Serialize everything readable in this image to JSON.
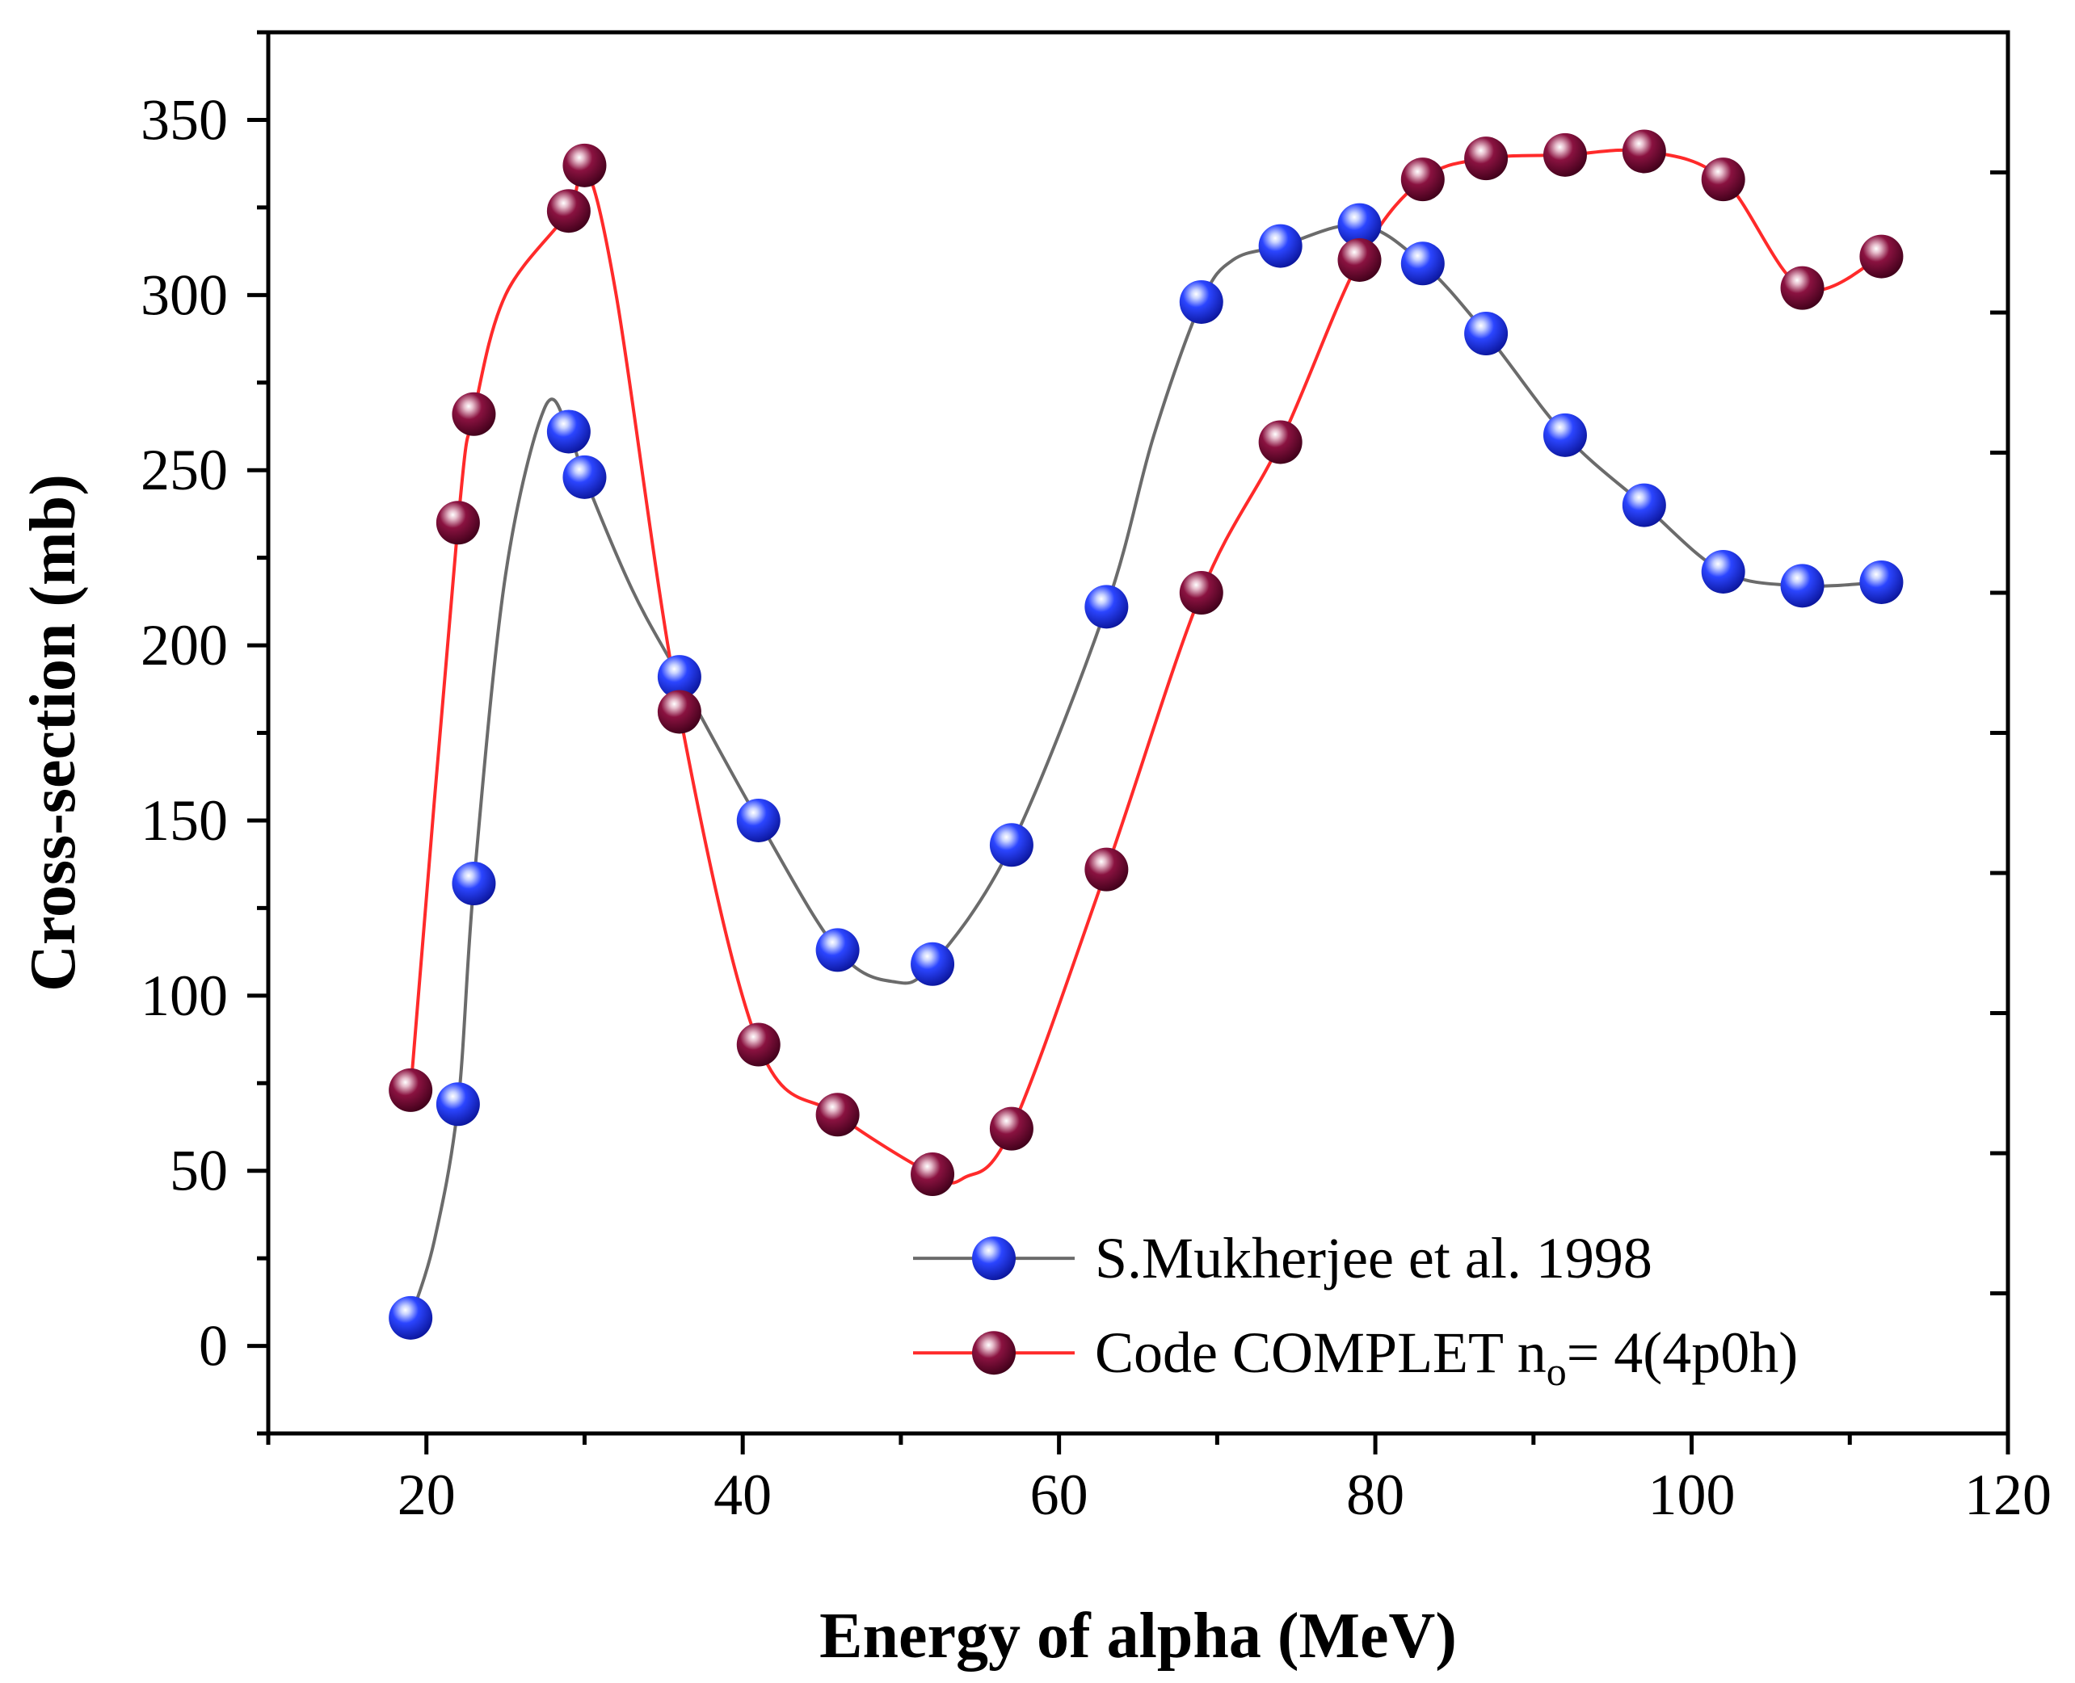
{
  "chart_data": {
    "type": "scatter",
    "title": "",
    "xlabel": "Energy of alpha (MeV)",
    "ylabel": "Cross-section (mb)",
    "xlim": [
      10,
      120
    ],
    "ylim": [
      -25,
      375
    ],
    "xticks": [
      20,
      40,
      60,
      80,
      100,
      120
    ],
    "xtick_labels": [
      "20",
      "40",
      "60",
      "80",
      "100",
      "120"
    ],
    "yticks": [
      0,
      50,
      100,
      150,
      200,
      250,
      300,
      350
    ],
    "ytick_labels": [
      "0",
      "50",
      "100",
      "150",
      "200",
      "250",
      "300",
      "350"
    ],
    "grid": false,
    "legend_position": "bottom-right",
    "series": [
      {
        "name": "S.Mukherjee et al. 1998",
        "line_color": "#6b6b6b",
        "marker_color": "#1f3cff",
        "x": [
          19,
          22,
          23,
          29,
          30,
          36,
          41,
          46,
          52,
          57,
          63,
          69,
          74,
          79,
          83,
          87,
          92,
          97,
          102,
          107,
          112
        ],
        "y": [
          8,
          69,
          132,
          261,
          248,
          191,
          150,
          113,
          109,
          143,
          211,
          298,
          314,
          320,
          309,
          289,
          260,
          240,
          221,
          217,
          218
        ],
        "curve_x": [
          19,
          20.5,
          22,
          23,
          25,
          27.5,
          29,
          30,
          33,
          36,
          41,
          46,
          49.5,
          52,
          57,
          63,
          66,
          69,
          71,
          74,
          79,
          83,
          87,
          92,
          97,
          102,
          107,
          112
        ],
        "curve_y": [
          8,
          30,
          69,
          132,
          220,
          268,
          261,
          248,
          216,
          191,
          150,
          113,
          104,
          109,
          143,
          211,
          260,
          298,
          310,
          314,
          320,
          309,
          289,
          260,
          240,
          221,
          217,
          218
        ]
      },
      {
        "name": "Code COMPLET n",
        "legend_subscript": "o",
        "legend_suffix": "= 4(4p0h)",
        "line_color": "#ff2a2a",
        "marker_color": "#7d0f38",
        "x": [
          19,
          22,
          23,
          29,
          30,
          36,
          41,
          46,
          52,
          57,
          63,
          69,
          74,
          79,
          83,
          87,
          92,
          97,
          102,
          107,
          112
        ],
        "y": [
          73,
          235,
          266,
          324,
          337,
          181,
          86,
          66,
          49,
          62,
          136,
          215,
          258,
          310,
          333,
          339,
          340,
          341,
          333,
          302,
          311
        ],
        "curve_x": [
          19,
          22,
          23,
          25,
          29,
          30,
          32,
          36,
          41,
          46,
          52,
          54,
          57,
          63,
          69,
          74,
          79,
          83,
          87,
          92,
          97,
          102,
          107,
          112
        ],
        "curve_y": [
          73,
          235,
          266,
          300,
          324,
          337,
          300,
          181,
          86,
          66,
          49,
          48,
          62,
          136,
          215,
          258,
          310,
          333,
          339,
          340,
          341,
          333,
          302,
          311
        ]
      }
    ]
  }
}
